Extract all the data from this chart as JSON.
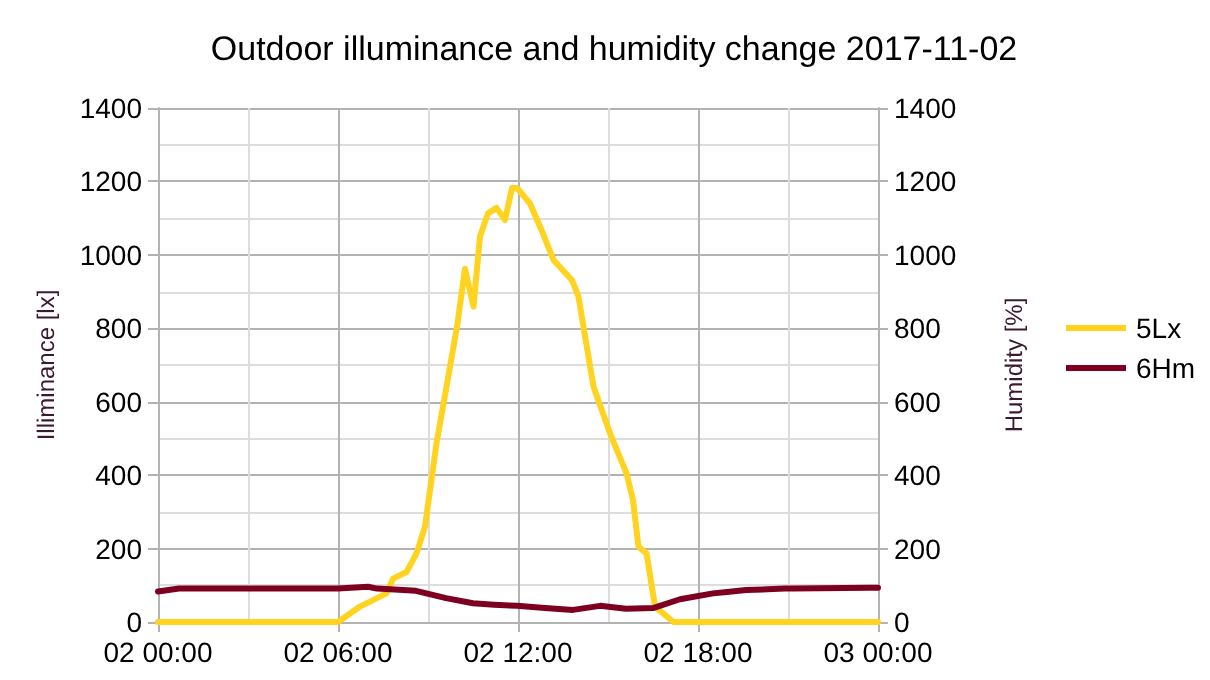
{
  "chart_data": {
    "type": "line",
    "title": "Outdoor illuminance and humidity change 2017-11-02",
    "ylabel": "Illiminance [lx]",
    "y2label": "Humidity [%]",
    "xlim": [
      "2017-11-02T00:00",
      "2017-11-03T00:00"
    ],
    "xticks": [
      {
        "value": "2017-11-02T00:00",
        "label": "02 00:00"
      },
      {
        "value": "2017-11-02T06:00",
        "label": "02 06:00"
      },
      {
        "value": "2017-11-02T12:00",
        "label": "02 12:00"
      },
      {
        "value": "2017-11-02T18:00",
        "label": "02 18:00"
      },
      {
        "value": "2017-11-03T00:00",
        "label": "03 00:00"
      }
    ],
    "ylim": [
      0,
      1400
    ],
    "yticks": [
      0,
      200,
      400,
      600,
      800,
      1000,
      1200,
      1400
    ],
    "y2lim": [
      0,
      1400
    ],
    "y2ticks": [
      0,
      200,
      400,
      600,
      800,
      1000,
      1200,
      1400
    ],
    "grid": true,
    "legend": "right",
    "marker": "none",
    "line_style": "solid",
    "series": [
      {
        "name": "5Lx",
        "color": "#ffd320",
        "x": [
          "2017-11-02T00:00",
          "2017-11-02T06:00",
          "2017-11-02T06:44",
          "2017-11-02T07:37",
          "2017-11-02T07:50",
          "2017-11-02T08:17",
          "2017-11-02T08:37",
          "2017-11-02T08:54",
          "2017-11-02T09:17",
          "2017-11-02T09:37",
          "2017-11-02T09:58",
          "2017-11-02T10:14",
          "2017-11-02T10:31",
          "2017-11-02T10:44",
          "2017-11-02T11:00",
          "2017-11-02T11:17",
          "2017-11-02T11:34",
          "2017-11-02T11:48",
          "2017-11-02T11:58",
          "2017-11-02T12:24",
          "2017-11-02T12:50",
          "2017-11-02T13:11",
          "2017-11-02T13:48",
          "2017-11-02T14:01",
          "2017-11-02T14:31",
          "2017-11-02T15:04",
          "2017-11-02T15:37",
          "2017-11-02T15:50",
          "2017-11-02T16:01",
          "2017-11-02T16:17",
          "2017-11-02T16:34",
          "2017-11-02T17:11",
          "2017-11-03T00:00"
        ],
        "values": [
          0,
          0,
          42,
          78,
          118,
          136,
          187,
          260,
          487,
          641,
          804,
          962,
          859,
          1050,
          1113,
          1128,
          1095,
          1182,
          1182,
          1140,
          1058,
          986,
          931,
          886,
          641,
          514,
          405,
          332,
          205,
          187,
          42,
          0,
          0
        ]
      },
      {
        "name": "6Hm",
        "color": "#7e0021",
        "axis": "y2",
        "x": [
          "2017-11-02T00:00",
          "2017-11-02T00:42",
          "2017-11-02T06:00",
          "2017-11-02T07:00",
          "2017-11-02T07:18",
          "2017-11-02T08:36",
          "2017-11-02T09:36",
          "2017-11-02T10:30",
          "2017-11-02T11:12",
          "2017-11-02T11:58",
          "2017-11-02T12:54",
          "2017-11-02T13:50",
          "2017-11-02T14:44",
          "2017-11-02T15:36",
          "2017-11-02T16:30",
          "2017-11-02T17:24",
          "2017-11-02T18:30",
          "2017-11-02T18:58",
          "2017-11-02T19:36",
          "2017-11-02T20:54",
          "2017-11-02T21:12",
          "2017-11-02T23:44",
          "2017-11-03T00:00"
        ],
        "values": [
          83,
          91,
          91,
          96,
          91,
          85,
          65,
          51,
          47,
          44,
          38,
          33,
          44,
          36,
          38,
          62,
          78,
          82,
          87,
          91,
          91,
          93,
          93
        ]
      }
    ]
  }
}
